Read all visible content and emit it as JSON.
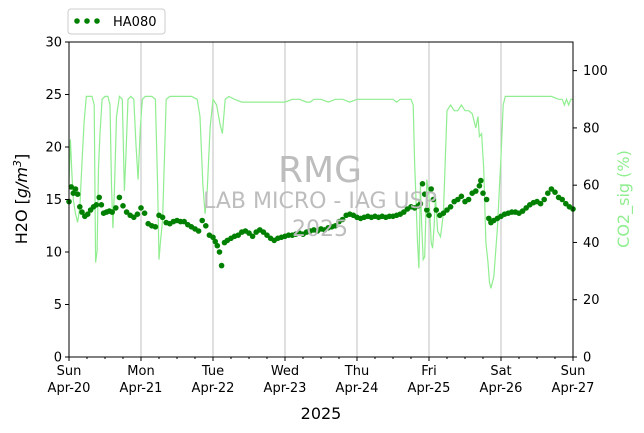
{
  "chart_data": {
    "type": "scatter",
    "xlabel": "2025",
    "ylabel": "H2O [g/m³]",
    "ylabel_parts": {
      "main": "H2O [",
      "italic": "g/m",
      "sup": "3",
      "close": "]"
    },
    "y2label": "CO2_sig (%)",
    "xlim": [
      0,
      7
    ],
    "ylim": [
      0,
      30
    ],
    "y2lim": [
      0,
      110
    ],
    "yticks": [
      0,
      5,
      10,
      15,
      20,
      25,
      30
    ],
    "y2ticks": [
      0,
      20,
      40,
      60,
      80,
      100
    ],
    "xticks": [
      {
        "day": 0,
        "line1": "Sun",
        "line2": "Apr-20"
      },
      {
        "day": 1,
        "line1": "Mon",
        "line2": "Apr-21"
      },
      {
        "day": 2,
        "line1": "Tue",
        "line2": "Apr-22"
      },
      {
        "day": 3,
        "line1": "Wed",
        "line2": "Apr-23"
      },
      {
        "day": 4,
        "line1": "Thu",
        "line2": "Apr-24"
      },
      {
        "day": 5,
        "line1": "Fri",
        "line2": "Apr-25"
      },
      {
        "day": 6,
        "line1": "Sat",
        "line2": "Apr-26"
      },
      {
        "day": 7,
        "line1": "Sun",
        "line2": "Apr-27"
      }
    ],
    "grid": "vertical",
    "legend_position": "top-left",
    "legend": [
      {
        "name": "HA080",
        "style": "dotted",
        "color": "#008000"
      }
    ],
    "watermark": {
      "line1": "RMG",
      "line2": "LAB MICRO - IAG USP",
      "line3": "2025"
    },
    "colors": {
      "h2o": "#008000",
      "co2": "#90EE90",
      "grid": "#b0b0b0"
    },
    "series": [
      {
        "name": "HA080",
        "axis": "left",
        "points": [
          [
            0.0,
            14.8
          ],
          [
            0.03,
            16.2
          ],
          [
            0.06,
            15.6
          ],
          [
            0.09,
            16.0
          ],
          [
            0.12,
            15.5
          ],
          [
            0.15,
            14.3
          ],
          [
            0.18,
            13.8
          ],
          [
            0.22,
            13.4
          ],
          [
            0.26,
            13.6
          ],
          [
            0.3,
            14.0
          ],
          [
            0.34,
            14.3
          ],
          [
            0.38,
            14.5
          ],
          [
            0.42,
            15.2
          ],
          [
            0.45,
            14.5
          ],
          [
            0.48,
            13.7
          ],
          [
            0.52,
            13.8
          ],
          [
            0.56,
            13.9
          ],
          [
            0.6,
            13.8
          ],
          [
            0.65,
            14.2
          ],
          [
            0.7,
            15.2
          ],
          [
            0.75,
            14.4
          ],
          [
            0.8,
            13.8
          ],
          [
            0.85,
            13.5
          ],
          [
            0.9,
            13.3
          ],
          [
            0.95,
            13.6
          ],
          [
            1.0,
            14.2
          ],
          [
            1.05,
            13.7
          ],
          [
            1.1,
            12.7
          ],
          [
            1.15,
            12.5
          ],
          [
            1.2,
            12.4
          ],
          [
            1.25,
            13.5
          ],
          [
            1.3,
            13.3
          ],
          [
            1.35,
            12.8
          ],
          [
            1.4,
            12.7
          ],
          [
            1.45,
            12.9
          ],
          [
            1.5,
            13.0
          ],
          [
            1.55,
            12.9
          ],
          [
            1.6,
            12.9
          ],
          [
            1.65,
            12.6
          ],
          [
            1.7,
            12.4
          ],
          [
            1.75,
            12.2
          ],
          [
            1.8,
            12.0
          ],
          [
            1.85,
            13.0
          ],
          [
            1.9,
            12.5
          ],
          [
            1.95,
            11.6
          ],
          [
            2.0,
            11.4
          ],
          [
            2.03,
            11.0
          ],
          [
            2.06,
            10.6
          ],
          [
            2.09,
            10.0
          ],
          [
            2.12,
            8.7
          ],
          [
            2.16,
            10.9
          ],
          [
            2.2,
            11.1
          ],
          [
            2.25,
            11.3
          ],
          [
            2.3,
            11.5
          ],
          [
            2.35,
            11.6
          ],
          [
            2.4,
            11.9
          ],
          [
            2.45,
            12.0
          ],
          [
            2.5,
            11.8
          ],
          [
            2.55,
            11.5
          ],
          [
            2.6,
            11.9
          ],
          [
            2.65,
            12.1
          ],
          [
            2.7,
            11.9
          ],
          [
            2.75,
            11.6
          ],
          [
            2.8,
            11.3
          ],
          [
            2.85,
            11.1
          ],
          [
            2.9,
            11.3
          ],
          [
            2.95,
            11.4
          ],
          [
            3.0,
            11.5
          ],
          [
            3.05,
            11.6
          ],
          [
            3.1,
            11.6
          ],
          [
            3.15,
            11.7
          ],
          [
            3.2,
            11.8
          ],
          [
            3.25,
            11.7
          ],
          [
            3.3,
            11.9
          ],
          [
            3.35,
            12.0
          ],
          [
            3.4,
            12.1
          ],
          [
            3.45,
            12.0
          ],
          [
            3.5,
            12.2
          ],
          [
            3.55,
            12.1
          ],
          [
            3.6,
            12.3
          ],
          [
            3.65,
            12.4
          ],
          [
            3.7,
            12.5
          ],
          [
            3.75,
            12.9
          ],
          [
            3.8,
            13.1
          ],
          [
            3.85,
            13.5
          ],
          [
            3.9,
            13.6
          ],
          [
            3.95,
            13.5
          ],
          [
            4.0,
            13.3
          ],
          [
            4.05,
            13.2
          ],
          [
            4.1,
            13.3
          ],
          [
            4.15,
            13.4
          ],
          [
            4.2,
            13.3
          ],
          [
            4.25,
            13.4
          ],
          [
            4.3,
            13.3
          ],
          [
            4.35,
            13.4
          ],
          [
            4.4,
            13.3
          ],
          [
            4.45,
            13.4
          ],
          [
            4.5,
            13.4
          ],
          [
            4.55,
            13.5
          ],
          [
            4.6,
            13.6
          ],
          [
            4.65,
            13.8
          ],
          [
            4.7,
            14.1
          ],
          [
            4.75,
            14.3
          ],
          [
            4.8,
            14.2
          ],
          [
            4.85,
            14.4
          ],
          [
            4.88,
            14.6
          ],
          [
            4.91,
            16.5
          ],
          [
            4.94,
            15.5
          ],
          [
            4.97,
            14.0
          ],
          [
            5.0,
            13.5
          ],
          [
            5.03,
            16.0
          ],
          [
            5.06,
            15.0
          ],
          [
            5.1,
            14.0
          ],
          [
            5.15,
            13.5
          ],
          [
            5.2,
            13.7
          ],
          [
            5.25,
            14.0
          ],
          [
            5.3,
            14.3
          ],
          [
            5.35,
            14.8
          ],
          [
            5.4,
            15.0
          ],
          [
            5.45,
            15.3
          ],
          [
            5.5,
            14.8
          ],
          [
            5.55,
            15.0
          ],
          [
            5.6,
            15.6
          ],
          [
            5.65,
            15.8
          ],
          [
            5.7,
            16.3
          ],
          [
            5.72,
            16.8
          ],
          [
            5.75,
            15.6
          ],
          [
            5.8,
            15.0
          ],
          [
            5.83,
            13.2
          ],
          [
            5.86,
            12.8
          ],
          [
            5.9,
            13.0
          ],
          [
            5.95,
            13.2
          ],
          [
            6.0,
            13.4
          ],
          [
            6.05,
            13.6
          ],
          [
            6.1,
            13.7
          ],
          [
            6.15,
            13.8
          ],
          [
            6.2,
            13.8
          ],
          [
            6.25,
            13.7
          ],
          [
            6.3,
            13.9
          ],
          [
            6.35,
            14.2
          ],
          [
            6.4,
            14.5
          ],
          [
            6.45,
            14.7
          ],
          [
            6.5,
            14.8
          ],
          [
            6.55,
            14.6
          ],
          [
            6.6,
            15.0
          ],
          [
            6.65,
            15.6
          ],
          [
            6.7,
            16.0
          ],
          [
            6.75,
            15.7
          ],
          [
            6.8,
            15.2
          ],
          [
            6.85,
            15.0
          ],
          [
            6.9,
            14.6
          ],
          [
            6.95,
            14.3
          ],
          [
            7.0,
            14.1
          ]
        ]
      },
      {
        "name": "CO2_sig",
        "axis": "right",
        "points": [
          [
            0.0,
            61
          ],
          [
            0.02,
            76
          ],
          [
            0.04,
            64
          ],
          [
            0.06,
            55
          ],
          [
            0.09,
            50
          ],
          [
            0.12,
            47
          ],
          [
            0.15,
            52
          ],
          [
            0.18,
            68
          ],
          [
            0.21,
            82
          ],
          [
            0.24,
            91
          ],
          [
            0.28,
            91
          ],
          [
            0.32,
            91
          ],
          [
            0.35,
            88
          ],
          [
            0.37,
            33
          ],
          [
            0.39,
            37
          ],
          [
            0.41,
            66
          ],
          [
            0.43,
            78
          ],
          [
            0.46,
            90
          ],
          [
            0.5,
            91
          ],
          [
            0.54,
            91
          ],
          [
            0.57,
            88
          ],
          [
            0.59,
            60
          ],
          [
            0.61,
            45
          ],
          [
            0.63,
            58
          ],
          [
            0.66,
            84
          ],
          [
            0.7,
            91
          ],
          [
            0.74,
            90
          ],
          [
            0.77,
            58
          ],
          [
            0.79,
            70
          ],
          [
            0.82,
            90
          ],
          [
            0.86,
            91
          ],
          [
            0.9,
            90
          ],
          [
            0.93,
            74
          ],
          [
            0.96,
            62
          ],
          [
            0.99,
            80
          ],
          [
            1.02,
            90
          ],
          [
            1.06,
            91
          ],
          [
            1.1,
            91
          ],
          [
            1.15,
            91
          ],
          [
            1.2,
            90
          ],
          [
            1.23,
            60
          ],
          [
            1.25,
            34
          ],
          [
            1.27,
            40
          ],
          [
            1.3,
            48
          ],
          [
            1.35,
            90
          ],
          [
            1.4,
            91
          ],
          [
            1.5,
            91
          ],
          [
            1.6,
            91
          ],
          [
            1.7,
            91
          ],
          [
            1.78,
            90
          ],
          [
            1.82,
            84
          ],
          [
            1.86,
            60
          ],
          [
            1.89,
            50
          ],
          [
            1.92,
            58
          ],
          [
            1.96,
            80
          ],
          [
            2.0,
            90
          ],
          [
            2.05,
            88
          ],
          [
            2.1,
            81
          ],
          [
            2.13,
            78
          ],
          [
            2.17,
            90
          ],
          [
            2.22,
            91
          ],
          [
            2.3,
            90
          ],
          [
            2.4,
            89
          ],
          [
            2.5,
            89
          ],
          [
            2.6,
            89
          ],
          [
            2.7,
            89
          ],
          [
            2.8,
            89
          ],
          [
            2.9,
            89
          ],
          [
            3.0,
            89
          ],
          [
            3.1,
            90
          ],
          [
            3.2,
            90
          ],
          [
            3.3,
            89
          ],
          [
            3.35,
            89
          ],
          [
            3.4,
            90
          ],
          [
            3.5,
            90
          ],
          [
            3.6,
            89
          ],
          [
            3.7,
            90
          ],
          [
            3.8,
            90
          ],
          [
            3.9,
            89
          ],
          [
            4.0,
            90
          ],
          [
            4.1,
            90
          ],
          [
            4.2,
            90
          ],
          [
            4.3,
            90
          ],
          [
            4.4,
            90
          ],
          [
            4.5,
            90
          ],
          [
            4.55,
            89
          ],
          [
            4.6,
            90
          ],
          [
            4.7,
            90
          ],
          [
            4.75,
            90
          ],
          [
            4.78,
            88
          ],
          [
            4.8,
            68
          ],
          [
            4.82,
            55
          ],
          [
            4.84,
            40
          ],
          [
            4.86,
            31
          ],
          [
            4.88,
            60
          ],
          [
            4.9,
            45
          ],
          [
            4.92,
            34
          ],
          [
            4.94,
            35
          ],
          [
            4.97,
            62
          ],
          [
            5.0,
            56
          ],
          [
            5.03,
            40
          ],
          [
            5.05,
            38
          ],
          [
            5.07,
            45
          ],
          [
            5.09,
            56
          ],
          [
            5.12,
            44
          ],
          [
            5.16,
            42
          ],
          [
            5.2,
            50
          ],
          [
            5.25,
            86
          ],
          [
            5.3,
            88
          ],
          [
            5.35,
            86
          ],
          [
            5.4,
            86
          ],
          [
            5.45,
            88
          ],
          [
            5.5,
            86
          ],
          [
            5.55,
            86
          ],
          [
            5.6,
            85
          ],
          [
            5.65,
            80
          ],
          [
            5.68,
            84
          ],
          [
            5.7,
            77
          ],
          [
            5.73,
            78
          ],
          [
            5.76,
            66
          ],
          [
            5.79,
            40
          ],
          [
            5.82,
            33
          ],
          [
            5.84,
            26
          ],
          [
            5.86,
            24
          ],
          [
            5.9,
            28
          ],
          [
            5.95,
            45
          ],
          [
            6.0,
            70
          ],
          [
            6.03,
            88
          ],
          [
            6.06,
            91
          ],
          [
            6.1,
            91
          ],
          [
            6.2,
            91
          ],
          [
            6.3,
            91
          ],
          [
            6.4,
            91
          ],
          [
            6.5,
            91
          ],
          [
            6.6,
            91
          ],
          [
            6.7,
            91
          ],
          [
            6.8,
            90
          ],
          [
            6.85,
            90
          ],
          [
            6.88,
            88
          ],
          [
            6.91,
            90
          ],
          [
            6.94,
            88
          ],
          [
            6.97,
            90
          ],
          [
            7.0,
            90
          ]
        ]
      }
    ]
  }
}
